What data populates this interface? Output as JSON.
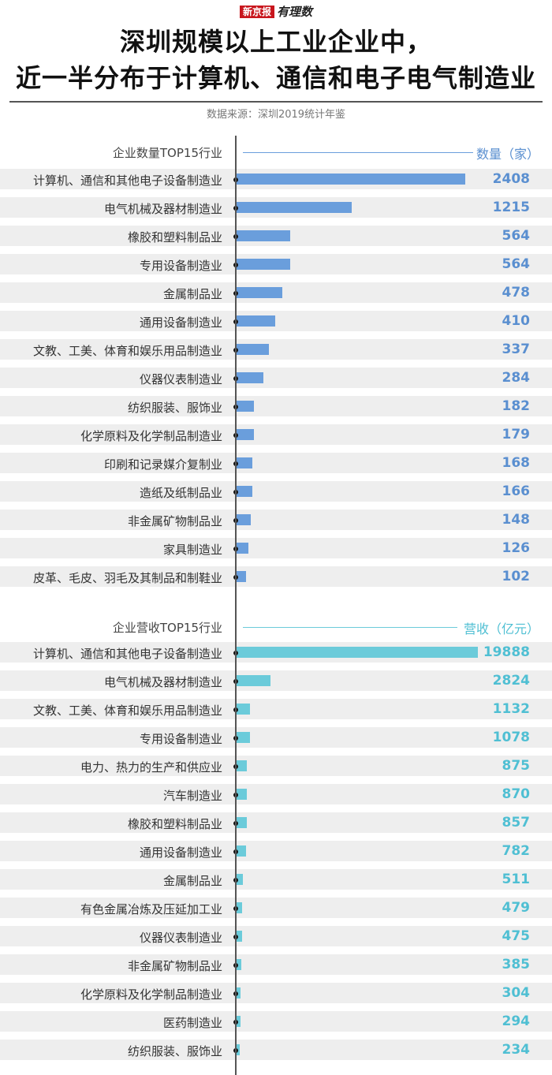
{
  "brand": {
    "box": "新京报",
    "text": "有理数"
  },
  "title": {
    "line1": "深圳规模以上工业企业中，",
    "line2": "近一半分布于计算机、通信和电子电气制造业"
  },
  "source": "数据来源：深圳2019统计年鉴",
  "colors": {
    "count": "#6a9edc",
    "revenue": "#6bcbda",
    "countText": "#5a8fd0",
    "revenueText": "#4fbfd3"
  },
  "chart_data": [
    {
      "type": "bar",
      "orientation": "horizontal",
      "title": "企业数量TOP15行业",
      "unit": "数量（家）",
      "categories": [
        "计算机、通信和其他电子设备制造业",
        "电气机械及器材制造业",
        "橡胶和塑料制品业",
        "专用设备制造业",
        "金属制品业",
        "通用设备制造业",
        "文教、工美、体育和娱乐用品制造业",
        "仪器仪表制造业",
        "纺织服装、服饰业",
        "化学原料及化学制品制造业",
        "印刷和记录媒介复制业",
        "造纸及纸制品业",
        "非金属矿物制品业",
        "家具制造业",
        "皮革、毛皮、羽毛及其制品和制鞋业"
      ],
      "values": [
        2408,
        1215,
        564,
        564,
        478,
        410,
        337,
        284,
        182,
        179,
        168,
        166,
        148,
        126,
        102
      ]
    },
    {
      "type": "bar",
      "orientation": "horizontal",
      "title": "企业营收TOP15行业",
      "unit": "营收（亿元）",
      "categories": [
        "计算机、通信和其他电子设备制造业",
        "电气机械及器材制造业",
        "文教、工美、体育和娱乐用品制造业",
        "专用设备制造业",
        "电力、热力的生产和供应业",
        "汽车制造业",
        "橡胶和塑料制品业",
        "通用设备制造业",
        "金属制品业",
        "有色金属冶炼及压延加工业",
        "仪器仪表制造业",
        "非金属矿物制品业",
        "化学原料及化学制品制造业",
        "医药制造业",
        "纺织服装、服饰业"
      ],
      "values": [
        19888,
        2824,
        1132,
        1078,
        875,
        870,
        857,
        782,
        511,
        479,
        475,
        385,
        304,
        294,
        234
      ]
    }
  ]
}
